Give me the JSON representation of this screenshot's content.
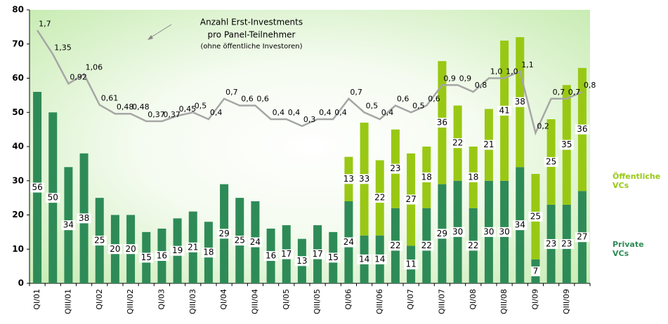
{
  "chart_data": {
    "type": "bar",
    "stacked": true,
    "categories": [
      "QI/01",
      null,
      "QIII/01",
      null,
      "QI/02",
      null,
      "QIII/02",
      null,
      "QI/03",
      null,
      "QIII/03",
      null,
      "QI/04",
      null,
      "QIII/04",
      null,
      "QI/05",
      null,
      "QIII/05",
      null,
      "QI/06",
      null,
      "QIII/06",
      null,
      "QI/07",
      null,
      "QIII/07",
      null,
      "QI/08",
      null,
      "QIII/08",
      null,
      "QI/09",
      null,
      "QIII/09",
      null
    ],
    "series": [
      {
        "name": "Private VCs",
        "color": "#2e8b57",
        "values": [
          56,
          50,
          34,
          38,
          25,
          20,
          20,
          15,
          16,
          19,
          21,
          18,
          29,
          25,
          24,
          16,
          17,
          13,
          17,
          15,
          24,
          14,
          14,
          22,
          11,
          22,
          29,
          30,
          22,
          30,
          30,
          34,
          7,
          23,
          23,
          27
        ]
      },
      {
        "name": "Öffentliche VCs",
        "color": "#99c814",
        "values": [
          null,
          null,
          null,
          null,
          null,
          null,
          null,
          null,
          null,
          null,
          null,
          null,
          null,
          null,
          null,
          null,
          null,
          null,
          null,
          null,
          13,
          33,
          22,
          23,
          27,
          18,
          36,
          22,
          18,
          21,
          41,
          38,
          25,
          25,
          35,
          36
        ]
      },
      {
        "type": "line",
        "axis": "y2",
        "color": "#a6a6a6",
        "values": [
          1.7,
          1.35,
          0.92,
          1.06,
          0.61,
          0.48,
          0.48,
          0.37,
          0.37,
          0.45,
          0.5,
          0.4,
          0.7,
          0.6,
          0.6,
          0.4,
          0.4,
          0.3,
          0.4,
          0.4,
          0.7,
          0.5,
          0.4,
          0.6,
          0.5,
          0.6,
          0.9,
          0.9,
          0.8,
          1.0,
          1.0,
          1.1,
          0.2,
          0.7,
          0.7,
          0.8
        ],
        "value_labels": [
          "1,7",
          "1,35",
          "0,92",
          "1,06",
          "0,61",
          "0,48",
          "0,48",
          "0,37",
          "0,37",
          "0,45",
          "0,5",
          "0,4",
          "0,7",
          "0,6",
          "0,6",
          "0,4",
          "0,4",
          "0,3",
          "0,4",
          "0,4",
          "0,7",
          "0,5",
          "0,4",
          "0,6",
          "0,5",
          "0,6",
          "0,9",
          "0,9",
          "0,8",
          "1,0",
          "1,0",
          "1,1",
          "0,2",
          "0,7",
          "0,7",
          "0,8"
        ]
      }
    ],
    "ylim": [
      0,
      80
    ],
    "yticks": [
      0,
      10,
      20,
      30,
      40,
      50,
      60,
      70,
      80
    ],
    "y2lim": [
      -2,
      2
    ],
    "annotation": [
      "Anzahl Erst-Investments",
      "pro Panel-Teilnehmer",
      "(ohne öffentliche Investoren)"
    ]
  }
}
